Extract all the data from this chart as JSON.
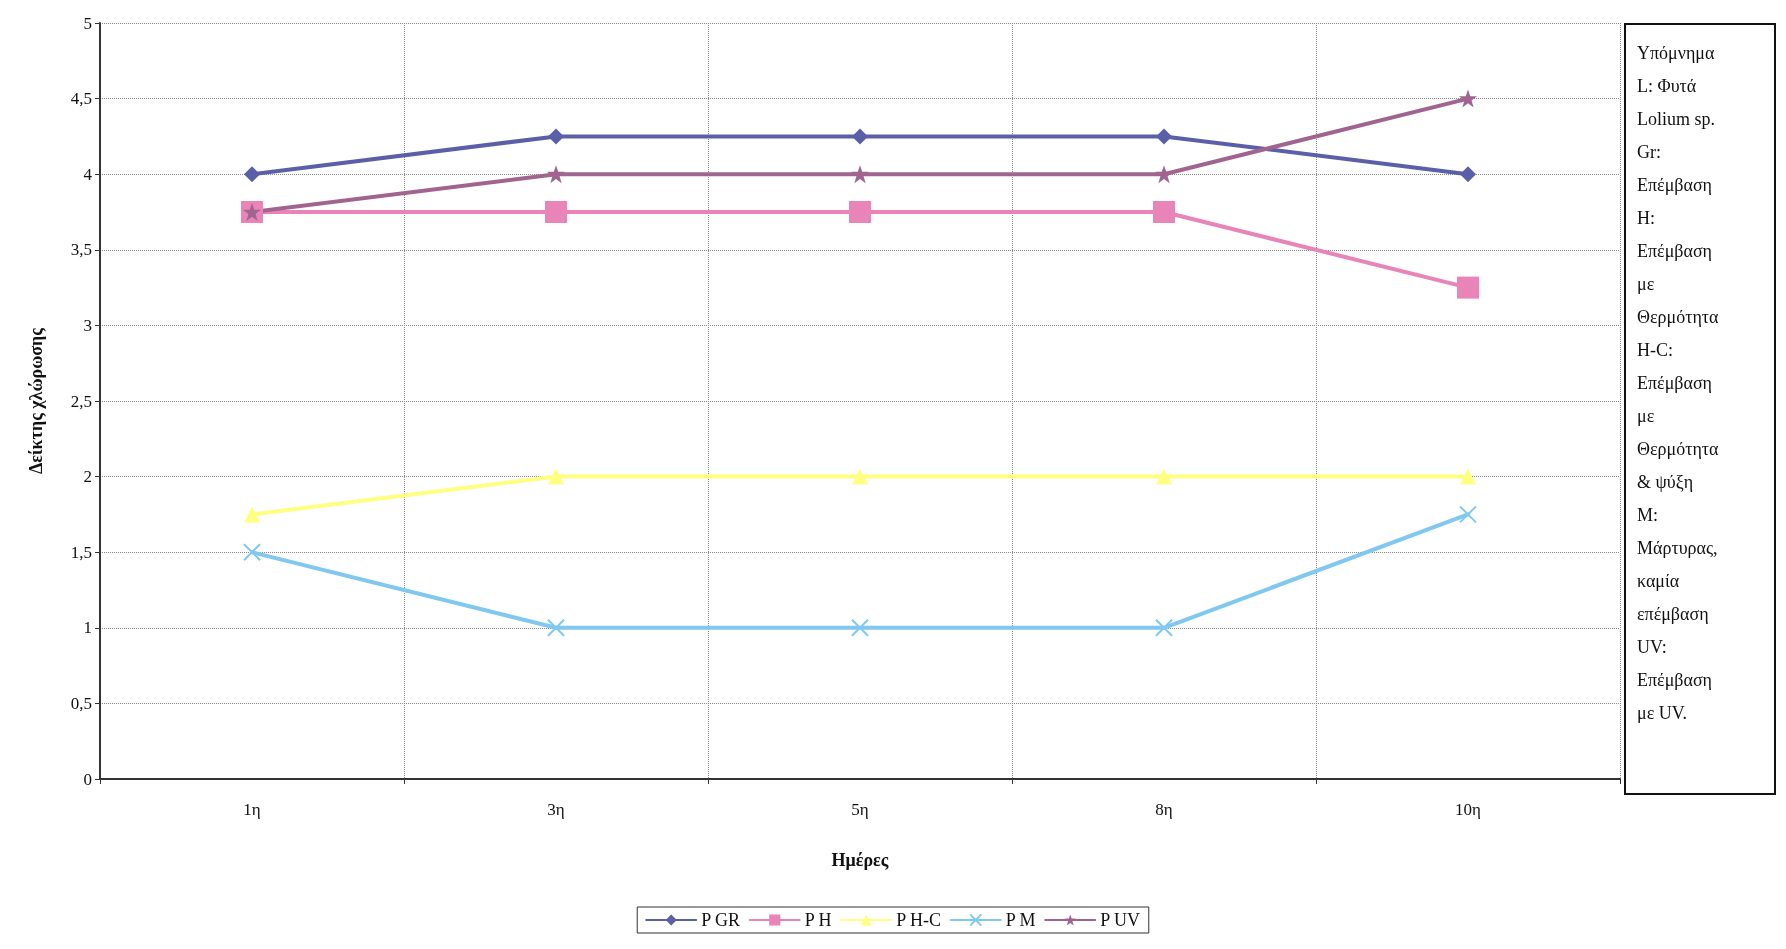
{
  "chart_data": {
    "type": "line",
    "xlabel": "Ημέρες",
    "ylabel": "Δείκτης χλώρωσης",
    "categories": [
      "1η",
      "3η",
      "5η",
      "8η",
      "10η"
    ],
    "ylim": [
      0,
      5
    ],
    "yticks": [
      0,
      {
        "value": 0.5,
        "label": "0,5"
      },
      1,
      {
        "value": 1.5,
        "label": "1,5"
      },
      2,
      {
        "value": 2.5,
        "label": "2,5"
      },
      3,
      {
        "value": 3.5,
        "label": "3,5"
      },
      4,
      {
        "value": 4.5,
        "label": "4,5"
      },
      5
    ],
    "grid": true,
    "legend": "bottom",
    "line_style": "solid",
    "series": [
      {
        "name": "P GR",
        "color": "#5b5fa8",
        "marker": "diamond",
        "values": [
          4,
          4.25,
          4.25,
          4.25,
          4
        ]
      },
      {
        "name": "P H",
        "color": "#e884b8",
        "marker": "square",
        "values": [
          3.75,
          3.75,
          3.75,
          3.75,
          3.25
        ]
      },
      {
        "name": "P H-C",
        "color": "#ffff80",
        "marker": "triangle",
        "values": [
          1.75,
          2,
          2,
          2,
          2
        ]
      },
      {
        "name": "P M",
        "color": "#80c8f0",
        "marker": "cross",
        "values": [
          1.5,
          1,
          1,
          1,
          1.75
        ]
      },
      {
        "name": "P UV",
        "color": "#a0648f",
        "marker": "star",
        "values": [
          3.75,
          4,
          4,
          4,
          4.5
        ]
      }
    ],
    "annotations": [
      "Υπόμνημα",
      "L: Φυτά Lolium sp.",
      "Gr: Επέμβαση",
      "H: Επέμβαση με Θερμότητα",
      "H-C: Επέμβαση με Θερμότητα & ψύξη",
      "M: Μάρτυρας, καμία επέμβαση",
      "UV: Επέμβαση με UV."
    ]
  }
}
